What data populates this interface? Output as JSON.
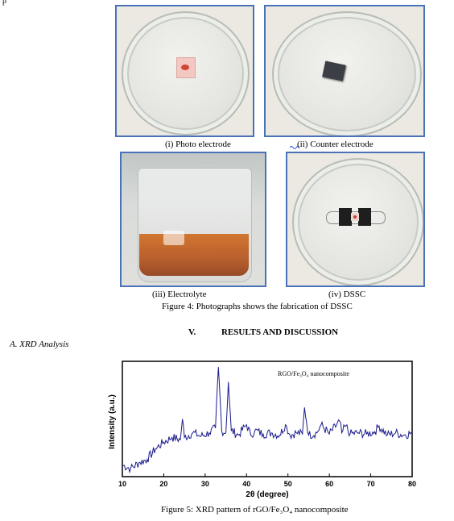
{
  "top_text_fragment": "p",
  "figure4": {
    "captions": {
      "photo_electrode": "(i)  Photo electrode",
      "counter_electrode": "(ii)  Counter electrode",
      "electrolyte": "(iii)  Electrolyte",
      "dssc": "(iv)  DSSC"
    },
    "title": "Figure 4: Photographs shows the fabrication of DSSC"
  },
  "section": {
    "number": "V.",
    "title": "RESULTS AND DISCUSSION"
  },
  "subsection": {
    "label": "A.   XRD Analysis"
  },
  "figure5": {
    "caption": "Figure 5:  XRD pattern of rGO/Fe₃O₄ nanocomposite"
  },
  "chart_data": {
    "type": "line",
    "xlabel": "2θ (degree)",
    "ylabel": "Intensity (a.u.)",
    "legend": "RGO/Fe₃O₄ nanocomposite",
    "legend_position": "top-right",
    "xlim": [
      10,
      80
    ],
    "ylim": [
      0,
      100
    ],
    "xticks": [
      "10",
      "20",
      "30",
      "40",
      "50",
      "60",
      "70",
      "80"
    ],
    "grid": false,
    "series": [
      {
        "x": [
          10,
          12,
          14,
          16,
          18,
          20,
          22,
          24,
          24.5,
          25,
          27,
          29,
          31,
          32.5,
          33.2,
          34,
          35,
          35.6,
          36.3,
          38,
          40,
          41,
          42,
          44,
          46,
          48,
          49.4,
          50.5,
          52,
          53.5,
          54.0,
          55,
          57,
          58,
          60,
          62.5,
          63,
          64,
          65,
          67,
          69,
          71,
          72,
          74,
          76,
          78,
          80
        ],
        "values": [
          10,
          7,
          12,
          15,
          24,
          30,
          34,
          32,
          50,
          34,
          38,
          35,
          38,
          42,
          95,
          40,
          38,
          82,
          40,
          36,
          45,
          36,
          40,
          37,
          38,
          36,
          45,
          36,
          38,
          37,
          60,
          36,
          38,
          45,
          37,
          48,
          38,
          44,
          37,
          38,
          37,
          39,
          44,
          36,
          38,
          36,
          38
        ]
      }
    ]
  }
}
